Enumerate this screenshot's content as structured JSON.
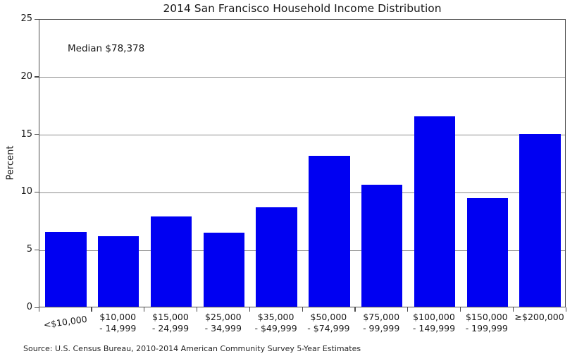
{
  "chart_data": {
    "type": "bar",
    "title": "2014 San Francisco Household Income Distribution",
    "ylabel": "Percent",
    "xlabel": "",
    "ylim": [
      0,
      25
    ],
    "yticks": [
      0,
      5,
      10,
      15,
      20,
      25
    ],
    "grid": true,
    "legend": "none",
    "bar_color": "#0000f2",
    "categories": [
      {
        "lines": [
          "<$10,000"
        ],
        "tilt": true
      },
      {
        "lines": [
          "$10,000",
          "- 14,999"
        ]
      },
      {
        "lines": [
          "$15,000",
          "- 24,999"
        ]
      },
      {
        "lines": [
          "$25,000",
          "- 34,999"
        ]
      },
      {
        "lines": [
          "$35,000",
          "- $49,999"
        ]
      },
      {
        "lines": [
          "$50,000",
          "- $74,999"
        ]
      },
      {
        "lines": [
          "$75,000",
          "- 99,999"
        ]
      },
      {
        "lines": [
          "$100,000",
          "- 149,999"
        ]
      },
      {
        "lines": [
          "$150,000",
          "- 199,999"
        ]
      },
      {
        "lines": [
          "≥$200,000"
        ]
      }
    ],
    "values": [
      6.5,
      6.1,
      7.8,
      6.4,
      8.6,
      13.1,
      10.6,
      16.5,
      9.4,
      15.0
    ],
    "annotation": "Median $78,378",
    "source": "Source: U.S. Census Bureau, 2010-2014 American Community Survey 5-Year Estimates"
  }
}
